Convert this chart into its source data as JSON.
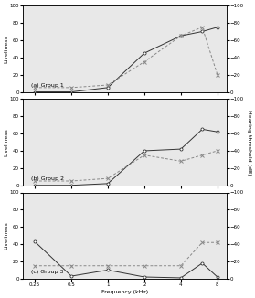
{
  "group1": {
    "label": "(a) Group 1",
    "liveliness_freqs": [
      0.25,
      0.5,
      1,
      2,
      4,
      6,
      8
    ],
    "liveliness": [
      0,
      0,
      5,
      45,
      65,
      70,
      75
    ],
    "hearing_freqs": [
      0.25,
      0.5,
      1,
      2,
      4,
      6,
      8
    ],
    "hearing": [
      -5,
      -5,
      -8,
      -35,
      -65,
      -75,
      -20
    ]
  },
  "group2": {
    "label": "(b) Group 2",
    "liveliness_freqs": [
      0.25,
      0.5,
      1,
      2,
      4,
      6,
      8
    ],
    "liveliness": [
      0,
      0,
      2,
      40,
      42,
      65,
      62
    ],
    "hearing_freqs": [
      0.25,
      0.5,
      1,
      2,
      4,
      6,
      8
    ],
    "hearing": [
      -5,
      -5,
      -8,
      -35,
      -28,
      -35,
      -40
    ]
  },
  "group3": {
    "label": "(c) Group 3",
    "liveliness_freqs": [
      0.25,
      0.5,
      1,
      2,
      4,
      6,
      8
    ],
    "liveliness": [
      43,
      3,
      10,
      2,
      1,
      18,
      2
    ],
    "hearing_freqs": [
      0.25,
      0.5,
      1,
      2,
      4,
      6,
      8
    ],
    "hearing": [
      -15,
      -15,
      -15,
      -15,
      -15,
      -42,
      -42
    ]
  },
  "xlim": [
    0.2,
    9.5
  ],
  "xticks": [
    0.25,
    0.5,
    1,
    2,
    4,
    8
  ],
  "xticklabels": [
    "0.25",
    "0.5",
    "1",
    "2",
    "4",
    "8"
  ],
  "ylim_left": [
    0,
    100
  ],
  "ylim_right": [
    0,
    -100
  ],
  "yticks_left": [
    0,
    20,
    40,
    60,
    80,
    100
  ],
  "yticks_right": [
    0,
    -20,
    -40,
    -60,
    -80,
    -100
  ],
  "ylabel_left": "Liveliness",
  "ylabel_right": "Hearing threshold (dB)",
  "xlabel": "Frequency (kHz)",
  "color_liveliness": "#333333",
  "color_hearing": "#888888"
}
